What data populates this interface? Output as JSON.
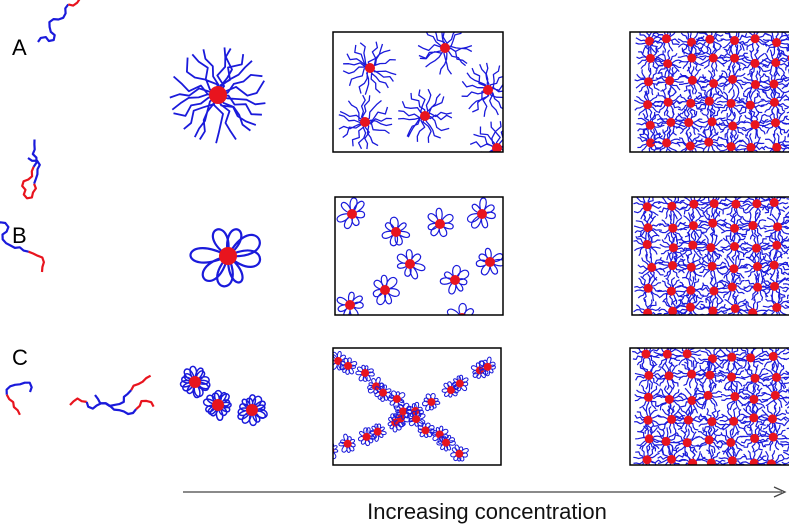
{
  "rows": [
    {
      "label": "A"
    },
    {
      "label": "B"
    },
    {
      "label": "C"
    }
  ],
  "axis_label": "Increasing concentration"
}
